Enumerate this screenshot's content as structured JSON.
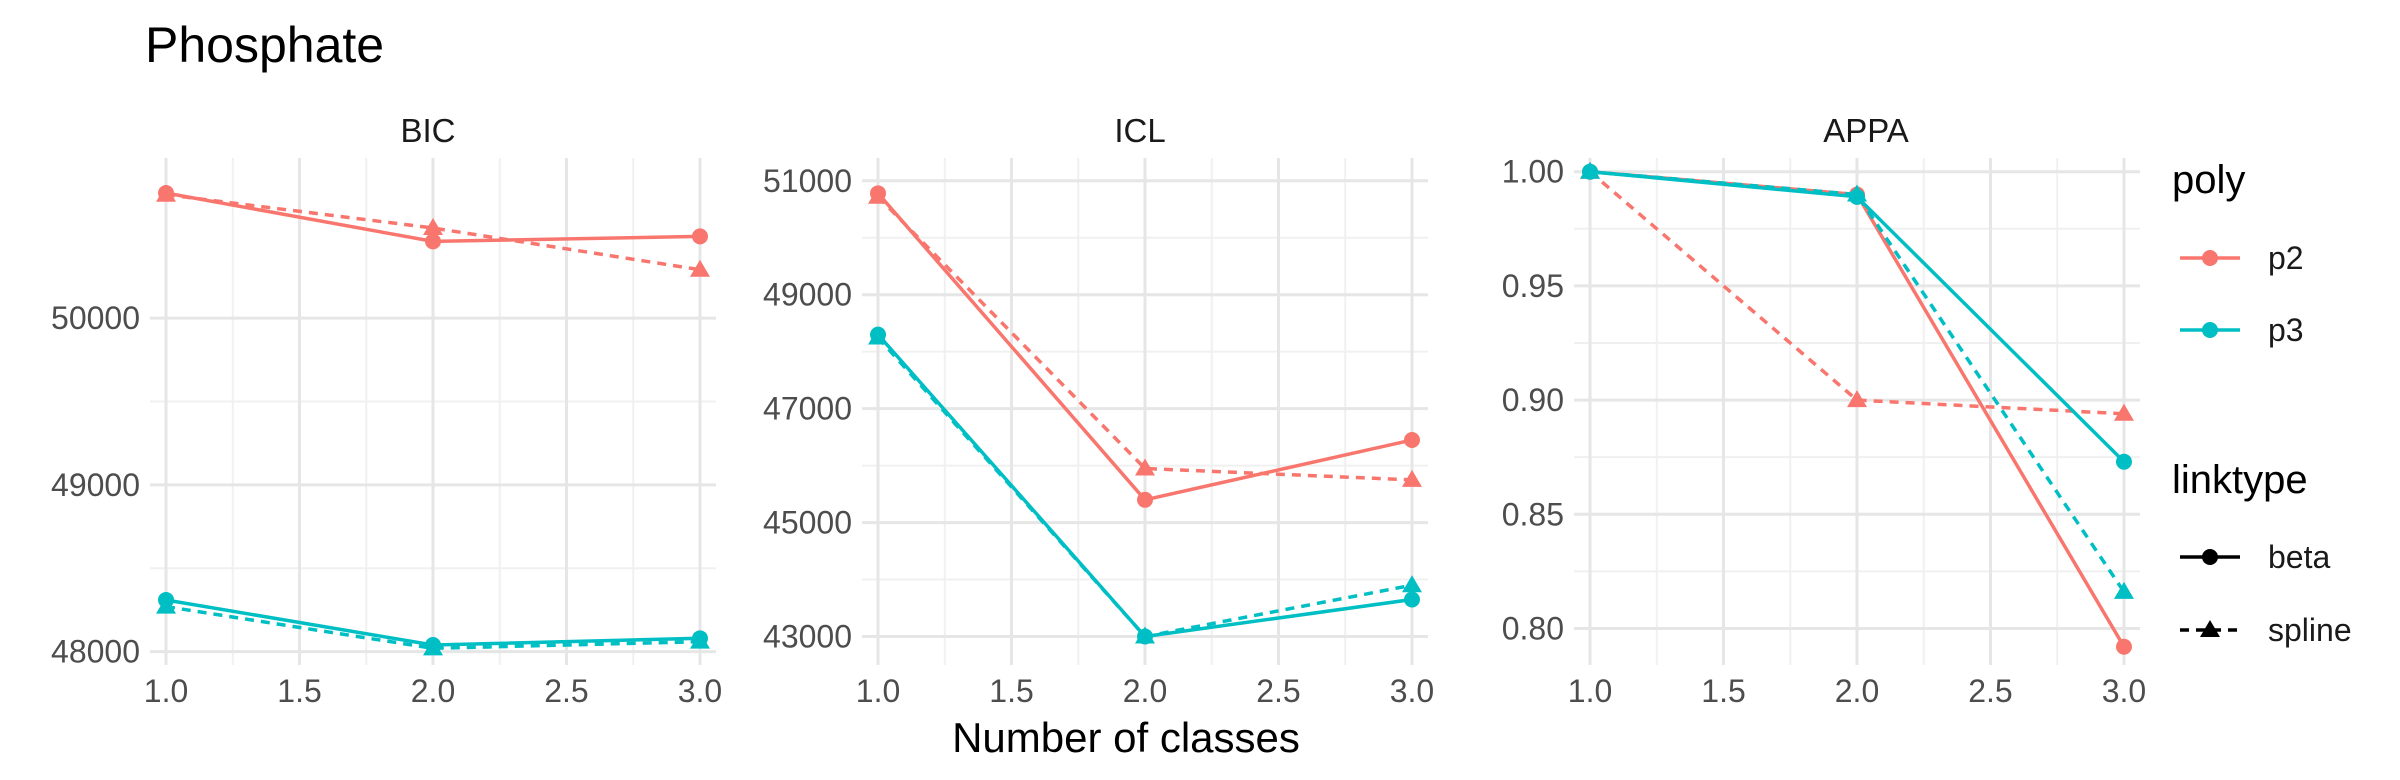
{
  "chart_data": {
    "type": "line",
    "title": "Phosphate",
    "xlabel": "Number of classes",
    "x_ticks": [
      "1.0",
      "1.5",
      "2.0",
      "2.5",
      "3.0"
    ],
    "xlim": [
      0.94,
      3.06
    ],
    "grid": true,
    "legend_placement": "right",
    "colors": {
      "p2": "#F8766D",
      "p3": "#00BFC4"
    },
    "legend": {
      "poly_title": "poly",
      "poly_items": [
        "p2",
        "p3"
      ],
      "linktype_title": "linktype",
      "linktype_items": [
        "beta",
        "spline"
      ]
    },
    "panels": [
      {
        "strip": "BIC",
        "ylim": [
          47920,
          50960
        ],
        "y_ticks": [
          48000,
          49000,
          50000
        ],
        "y_tick_labels": [
          "48000",
          "49000",
          "50000"
        ],
        "series": [
          {
            "poly": "p2",
            "linktype": "beta",
            "x": [
              1,
              2,
              3
            ],
            "y": [
              50750,
              50460,
              50490
            ]
          },
          {
            "poly": "p2",
            "linktype": "spline",
            "x": [
              1,
              2,
              3
            ],
            "y": [
              50740,
              50540,
              50290
            ]
          },
          {
            "poly": "p3",
            "linktype": "beta",
            "x": [
              1,
              2,
              3
            ],
            "y": [
              48310,
              48040,
              48080
            ]
          },
          {
            "poly": "p3",
            "linktype": "spline",
            "x": [
              1,
              2,
              3
            ],
            "y": [
              48270,
              48020,
              48060
            ]
          }
        ]
      },
      {
        "strip": "ICL",
        "ylim": [
          42500,
          51400
        ],
        "y_ticks": [
          43000,
          45000,
          47000,
          49000,
          51000
        ],
        "y_tick_labels": [
          "43000",
          "45000",
          "47000",
          "49000",
          "51000"
        ],
        "series": [
          {
            "poly": "p2",
            "linktype": "beta",
            "x": [
              1,
              2,
              3
            ],
            "y": [
              50780,
              45400,
              46450
            ]
          },
          {
            "poly": "p2",
            "linktype": "spline",
            "x": [
              1,
              2,
              3
            ],
            "y": [
              50720,
              45950,
              45750
            ]
          },
          {
            "poly": "p3",
            "linktype": "beta",
            "x": [
              1,
              2,
              3
            ],
            "y": [
              48300,
              43000,
              43650
            ]
          },
          {
            "poly": "p3",
            "linktype": "spline",
            "x": [
              1,
              2,
              3
            ],
            "y": [
              48250,
              43000,
              43900
            ]
          }
        ]
      },
      {
        "strip": "APPA",
        "ylim": [
          0.784,
          1.006
        ],
        "y_ticks": [
          0.8,
          0.85,
          0.9,
          0.95,
          1.0
        ],
        "y_tick_labels": [
          "0.80",
          "0.85",
          "0.90",
          "0.95",
          "1.00"
        ],
        "series": [
          {
            "poly": "p2",
            "linktype": "beta",
            "x": [
              1,
              2,
              3
            ],
            "y": [
              1.0,
              0.99,
              0.792
            ]
          },
          {
            "poly": "p2",
            "linktype": "spline",
            "x": [
              1,
              2,
              3
            ],
            "y": [
              1.0,
              0.9,
              0.894
            ]
          },
          {
            "poly": "p3",
            "linktype": "beta",
            "x": [
              1,
              2,
              3
            ],
            "y": [
              1.0,
              0.989,
              0.873
            ]
          },
          {
            "poly": "p3",
            "linktype": "spline",
            "x": [
              1,
              2,
              3
            ],
            "y": [
              1.0,
              0.99,
              0.816
            ]
          }
        ]
      }
    ]
  }
}
